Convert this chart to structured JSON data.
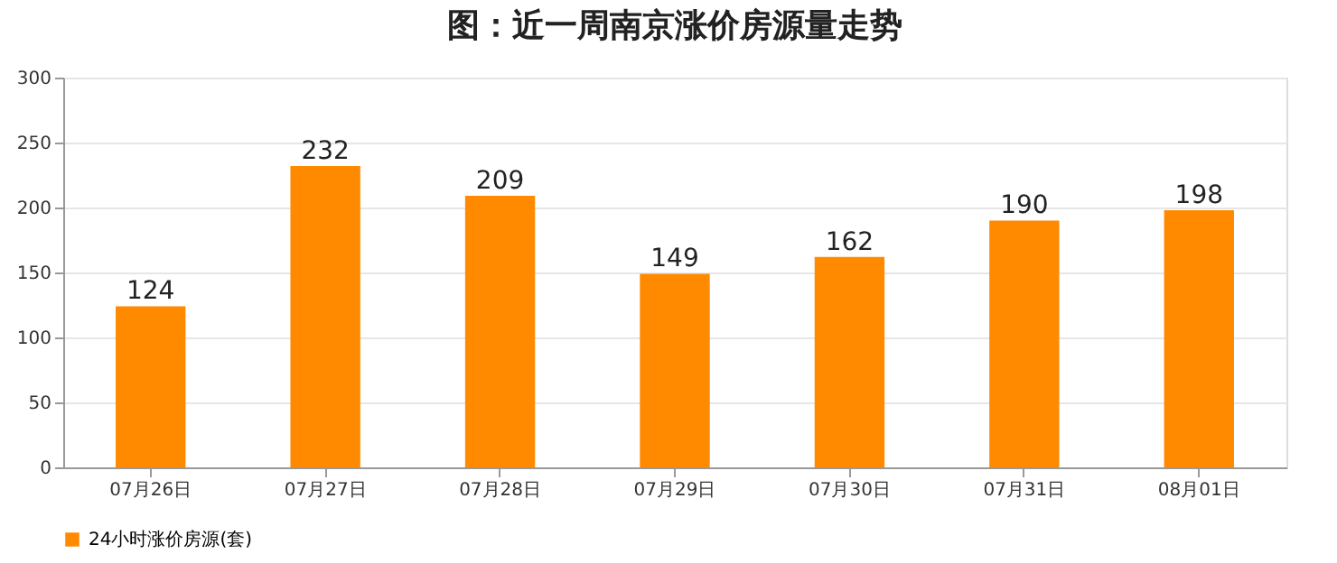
{
  "chart_data": {
    "type": "bar",
    "title": "图：近一周南京涨价房源量走势",
    "categories": [
      "07月26日",
      "07月27日",
      "07月28日",
      "07月29日",
      "07月30日",
      "07月31日",
      "08月01日"
    ],
    "series": [
      {
        "name": "24小时涨价房源(套)",
        "color": "#ff8a00",
        "values": [
          124,
          232,
          209,
          149,
          162,
          190,
          198
        ]
      }
    ],
    "ylim": [
      0,
      300
    ],
    "yticks": [
      0,
      50,
      100,
      150,
      200,
      250,
      300
    ],
    "grid": "y",
    "legend": "bottom",
    "data_labels": true
  }
}
